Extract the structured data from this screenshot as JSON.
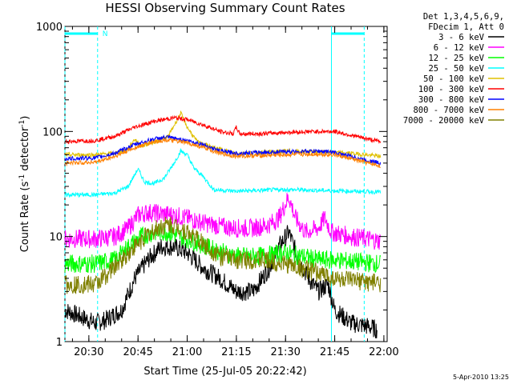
{
  "chart_data": {
    "type": "line",
    "title": "HESSI Observing Summary Count Rates",
    "xlabel": "Start Time (25-Jul-05 20:22:42)",
    "ylabel_main": "Count Rate (s",
    "ylabel_sup1": "-1",
    "ylabel_mid": " detector",
    "ylabel_sup2": "-1",
    "ylabel_end": ")",
    "y_scale": "log",
    "ylim": [
      1,
      1000
    ],
    "xlim": [
      "20:22:42",
      "22:01:00"
    ],
    "x_ticks": [
      {
        "label": "20:30",
        "t": "20:30"
      },
      {
        "label": "20:45",
        "t": "20:45"
      },
      {
        "label": "21:00",
        "t": "21:00"
      },
      {
        "label": "21:15",
        "t": "21:15"
      },
      {
        "label": "21:30",
        "t": "21:30"
      },
      {
        "label": "21:45",
        "t": "21:45"
      },
      {
        "label": "22:00",
        "t": "22:00"
      }
    ],
    "y_ticks": [
      {
        "label": "1",
        "v": 1
      },
      {
        "label": "10",
        "v": 10
      },
      {
        "label": "100",
        "v": 100
      },
      {
        "label": "1000",
        "v": 1000
      }
    ],
    "legend_header": [
      "Det 1,3,4,5,6,9,",
      "FDecim 1, Att 0"
    ],
    "legend_placement": "right",
    "night_marker_label": "N",
    "night_intervals": [
      {
        "start": "20:22:42",
        "end": "20:32:40"
      },
      {
        "start": "21:44:00",
        "end": "21:54:00"
      }
    ],
    "night_color": "#00ffff",
    "series": [
      {
        "name": "3 - 6 keV",
        "color": "#000000",
        "points": [
          [
            "20:22:42",
            2.0
          ],
          [
            "20:32:00",
            1.5
          ],
          [
            "20:35:00",
            1.6
          ],
          [
            "20:40:00",
            2.0
          ],
          [
            "20:44:00",
            4.0
          ],
          [
            "20:48:00",
            6.0
          ],
          [
            "20:52:00",
            8.0
          ],
          [
            "20:56:00",
            8.0
          ],
          [
            "21:00:00",
            7.0
          ],
          [
            "21:05:00",
            5.0
          ],
          [
            "21:10:00",
            4.0
          ],
          [
            "21:15:00",
            3.0
          ],
          [
            "21:20:00",
            3.0
          ],
          [
            "21:25:00",
            5.0
          ],
          [
            "21:28:00",
            8.0
          ],
          [
            "21:31:00",
            11.0
          ],
          [
            "21:34:00",
            6.0
          ],
          [
            "21:37:00",
            4.0
          ],
          [
            "21:40:00",
            3.0
          ],
          [
            "21:43:00",
            3.5
          ],
          [
            "21:45:00",
            2.0
          ],
          [
            "21:50:00",
            1.5
          ],
          [
            "21:55:00",
            1.4
          ],
          [
            "21:58:00",
            1.3
          ]
        ]
      },
      {
        "name": "6 - 12 keV",
        "color": "#ff00ff",
        "points": [
          [
            "20:22:42",
            9.5
          ],
          [
            "20:32:00",
            9.5
          ],
          [
            "20:38:00",
            10.0
          ],
          [
            "20:42:00",
            12.0
          ],
          [
            "20:45:00",
            16.0
          ],
          [
            "20:48:00",
            17.0
          ],
          [
            "20:52:00",
            16.5
          ],
          [
            "20:56:00",
            16.0
          ],
          [
            "21:00:00",
            15.0
          ],
          [
            "21:05:00",
            13.5
          ],
          [
            "21:10:00",
            12.5
          ],
          [
            "21:15:00",
            12.0
          ],
          [
            "21:20:00",
            12.0
          ],
          [
            "21:25:00",
            13.0
          ],
          [
            "21:28:00",
            15.0
          ],
          [
            "21:31:00",
            24.0
          ],
          [
            "21:33:00",
            15.0
          ],
          [
            "21:36:00",
            11.0
          ],
          [
            "21:40:00",
            12.0
          ],
          [
            "21:42:00",
            15.0
          ],
          [
            "21:44:00",
            11.0
          ],
          [
            "21:50:00",
            10.0
          ],
          [
            "21:55:00",
            9.5
          ],
          [
            "21:59:00",
            9.0
          ]
        ]
      },
      {
        "name": "12 - 25 keV",
        "color": "#00ff00",
        "points": [
          [
            "20:22:42",
            5.5
          ],
          [
            "20:32:00",
            5.5
          ],
          [
            "20:38:00",
            6.0
          ],
          [
            "20:42:00",
            8.0
          ],
          [
            "20:46:00",
            10.0
          ],
          [
            "20:50:00",
            11.0
          ],
          [
            "20:54:00",
            11.0
          ],
          [
            "20:58:00",
            10.0
          ],
          [
            "21:02:00",
            9.0
          ],
          [
            "21:08:00",
            7.5
          ],
          [
            "21:15:00",
            6.5
          ],
          [
            "21:22:00",
            6.5
          ],
          [
            "21:30:00",
            7.0
          ],
          [
            "21:35:00",
            6.5
          ],
          [
            "21:40:00",
            6.0
          ],
          [
            "21:45:00",
            6.0
          ],
          [
            "21:50:00",
            5.8
          ],
          [
            "21:59:00",
            5.5
          ]
        ]
      },
      {
        "name": "25 - 50 keV",
        "color": "#00ffff",
        "points": [
          [
            "20:22:42",
            25.0
          ],
          [
            "20:32:00",
            25.0
          ],
          [
            "20:38:00",
            26.0
          ],
          [
            "20:42:00",
            30.0
          ],
          [
            "20:45:00",
            44.0
          ],
          [
            "20:47:00",
            33.0
          ],
          [
            "20:50:00",
            32.0
          ],
          [
            "20:53:00",
            36.0
          ],
          [
            "20:56:00",
            50.0
          ],
          [
            "20:58:00",
            65.0
          ],
          [
            "21:00:00",
            60.0
          ],
          [
            "21:02:00",
            45.0
          ],
          [
            "21:05:00",
            37.0
          ],
          [
            "21:08:00",
            28.0
          ],
          [
            "21:15:00",
            27.0
          ],
          [
            "21:22:00",
            27.5
          ],
          [
            "21:30:00",
            28.0
          ],
          [
            "21:40:00",
            27.5
          ],
          [
            "21:50:00",
            27.0
          ],
          [
            "21:59:00",
            26.5
          ]
        ]
      },
      {
        "name": "50 - 100 keV",
        "color": "#e0c000",
        "points": [
          [
            "20:22:42",
            60.0
          ],
          [
            "20:32:00",
            60.0
          ],
          [
            "20:38:00",
            62.0
          ],
          [
            "20:42:00",
            68.0
          ],
          [
            "20:44:00",
            85.0
          ],
          [
            "20:46:00",
            72.0
          ],
          [
            "20:50:00",
            80.0
          ],
          [
            "20:54:00",
            88.0
          ],
          [
            "20:57:00",
            130.0
          ],
          [
            "20:58:00",
            150.0
          ],
          [
            "21:00:00",
            110.0
          ],
          [
            "21:03:00",
            80.0
          ],
          [
            "21:08:00",
            70.0
          ],
          [
            "21:15:00",
            62.0
          ],
          [
            "21:22:00",
            63.0
          ],
          [
            "21:30:00",
            65.0
          ],
          [
            "21:40:00",
            64.0
          ],
          [
            "21:50:00",
            62.0
          ],
          [
            "21:59:00",
            58.0
          ]
        ]
      },
      {
        "name": "100 - 300 keV",
        "color": "#ff0000",
        "points": [
          [
            "20:22:42",
            80.0
          ],
          [
            "20:32:00",
            82.0
          ],
          [
            "20:38:00",
            90.0
          ],
          [
            "20:44:00",
            110.0
          ],
          [
            "20:50:00",
            125.0
          ],
          [
            "20:56:00",
            135.0
          ],
          [
            "21:00:00",
            130.0
          ],
          [
            "21:05:00",
            115.0
          ],
          [
            "21:10:00",
            100.0
          ],
          [
            "21:14:00",
            95.0
          ],
          [
            "21:15:00",
            110.0
          ],
          [
            "21:16:00",
            95.0
          ],
          [
            "21:22:00",
            95.0
          ],
          [
            "21:30:00",
            98.0
          ],
          [
            "21:40:00",
            100.0
          ],
          [
            "21:45:00",
            100.0
          ],
          [
            "21:50:00",
            92.0
          ],
          [
            "21:55:00",
            85.0
          ],
          [
            "21:59:00",
            80.0
          ]
        ]
      },
      {
        "name": "300 - 800 keV",
        "color": "#0000ff",
        "points": [
          [
            "20:22:42",
            55.0
          ],
          [
            "20:32:00",
            56.0
          ],
          [
            "20:38:00",
            62.0
          ],
          [
            "20:44:00",
            75.0
          ],
          [
            "20:50:00",
            85.0
          ],
          [
            "20:54:00",
            88.0
          ],
          [
            "21:00:00",
            82.0
          ],
          [
            "21:05:00",
            75.0
          ],
          [
            "21:10:00",
            65.0
          ],
          [
            "21:15:00",
            62.0
          ],
          [
            "21:22:00",
            63.0
          ],
          [
            "21:30:00",
            64.0
          ],
          [
            "21:40:00",
            65.0
          ],
          [
            "21:45:00",
            63.0
          ],
          [
            "21:50:00",
            58.0
          ],
          [
            "21:55:00",
            53.0
          ],
          [
            "21:59:00",
            50.0
          ]
        ]
      },
      {
        "name": "800 - 7000 keV",
        "color": "#ff8000",
        "points": [
          [
            "20:22:42",
            50.0
          ],
          [
            "20:32:00",
            51.0
          ],
          [
            "20:38:00",
            58.0
          ],
          [
            "20:44:00",
            70.0
          ],
          [
            "20:50:00",
            80.0
          ],
          [
            "20:54:00",
            83.0
          ],
          [
            "21:00:00",
            78.0
          ],
          [
            "21:05:00",
            70.0
          ],
          [
            "21:10:00",
            62.0
          ],
          [
            "21:15:00",
            58.0
          ],
          [
            "21:22:00",
            59.0
          ],
          [
            "21:30:00",
            60.0
          ],
          [
            "21:40:00",
            61.0
          ],
          [
            "21:45:00",
            60.0
          ],
          [
            "21:50:00",
            55.0
          ],
          [
            "21:55:00",
            50.0
          ],
          [
            "21:59:00",
            47.0
          ]
        ]
      },
      {
        "name": "7000 - 20000 keV",
        "color": "#808000",
        "points": [
          [
            "20:22:42",
            3.5
          ],
          [
            "20:32:00",
            3.5
          ],
          [
            "20:36:00",
            4.5
          ],
          [
            "20:40:00",
            6.0
          ],
          [
            "20:44:00",
            8.0
          ],
          [
            "20:48:00",
            10.5
          ],
          [
            "20:52:00",
            12.5
          ],
          [
            "20:55:00",
            13.0
          ],
          [
            "20:58:00",
            12.0
          ],
          [
            "21:02:00",
            10.0
          ],
          [
            "21:06:00",
            8.0
          ],
          [
            "21:10:00",
            6.5
          ],
          [
            "21:15:00",
            6.0
          ],
          [
            "21:22:00",
            6.0
          ],
          [
            "21:30:00",
            5.5
          ],
          [
            "21:40:00",
            4.5
          ],
          [
            "21:45:00",
            4.0
          ],
          [
            "21:50:00",
            3.8
          ],
          [
            "21:59:00",
            3.6
          ]
        ]
      }
    ]
  },
  "footer": {
    "timestamp": "5-Apr-2010 13:25"
  }
}
